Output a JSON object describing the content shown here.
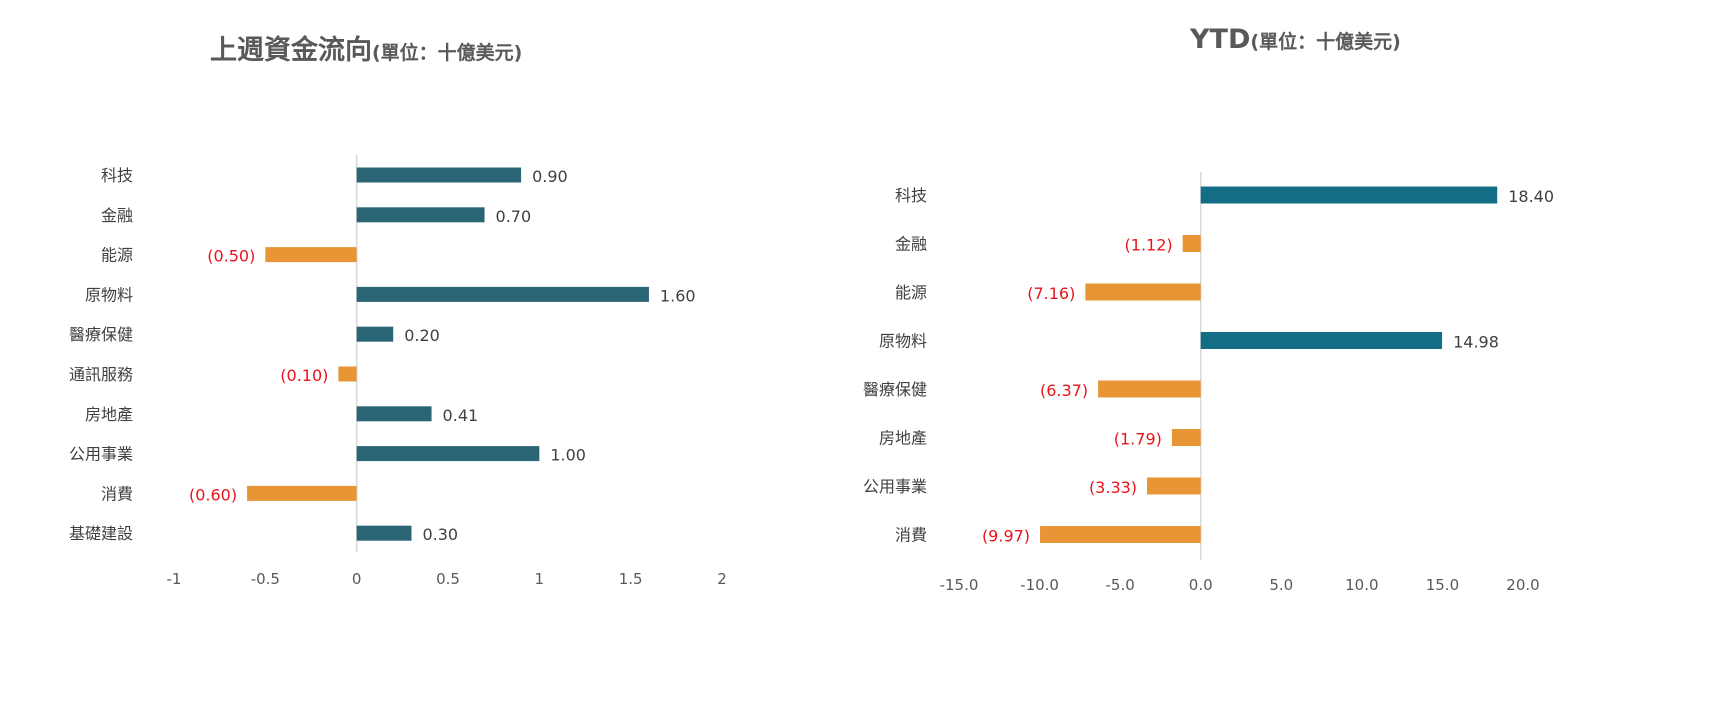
{
  "charts": {
    "left": {
      "title_main": "上週資金流向",
      "title_unit": "(單位：十億美元)"
    },
    "right": {
      "title_main": "YTD",
      "title_unit": "(單位：十億美元)"
    }
  },
  "colors": {
    "positive_left": "#2A6576",
    "positive_right": "#136E85",
    "negative": "#E79535",
    "negative_label": "#E8141B",
    "label_text": "#404040",
    "tick_text": "#595959",
    "axis_line": "#D9D9D9"
  },
  "chart_data": [
    {
      "type": "bar",
      "orientation": "horizontal",
      "title": "上週資金流向(單位：十億美元)",
      "categories": [
        "科技",
        "金融",
        "能源",
        "原物料",
        "醫療保健",
        "通訊服務",
        "房地產",
        "公用事業",
        "消費",
        "基礎建設"
      ],
      "values": [
        0.9,
        0.7,
        -0.5,
        1.6,
        0.2,
        -0.1,
        0.41,
        1.0,
        -0.6,
        0.3
      ],
      "value_labels": [
        "0.90",
        "0.70",
        "(0.50)",
        "1.60",
        "0.20",
        "(0.10)",
        "0.41",
        "1.00",
        "(0.60)",
        "0.30"
      ],
      "xlim": [
        -1,
        2
      ],
      "xticks": [
        -1,
        -0.5,
        0,
        0.5,
        1,
        1.5,
        2
      ],
      "xtick_labels": [
        "-1",
        "-0.5",
        "0",
        "0.5",
        "1",
        "1.5",
        "2"
      ],
      "grid": false,
      "legend": "none"
    },
    {
      "type": "bar",
      "orientation": "horizontal",
      "title": "YTD(單位：十億美元)",
      "categories": [
        "科技",
        "金融",
        "能源",
        "原物料",
        "醫療保健",
        "房地產",
        "公用事業",
        "消費"
      ],
      "values": [
        18.4,
        -1.12,
        -7.16,
        14.98,
        -6.37,
        -1.79,
        -3.33,
        -9.97
      ],
      "value_labels": [
        "18.40",
        "(1.12)",
        "(7.16)",
        "14.98",
        "(6.37)",
        "(1.79)",
        "(3.33)",
        "(9.97)"
      ],
      "xlim": [
        -15,
        20
      ],
      "xticks": [
        -15,
        -10,
        -5,
        0,
        5,
        10,
        15,
        20
      ],
      "xtick_labels": [
        "-15.0",
        "-10.0",
        "-5.0",
        "0.0",
        "5.0",
        "10.0",
        "15.0",
        "20.0"
      ],
      "grid": false,
      "legend": "none"
    }
  ]
}
